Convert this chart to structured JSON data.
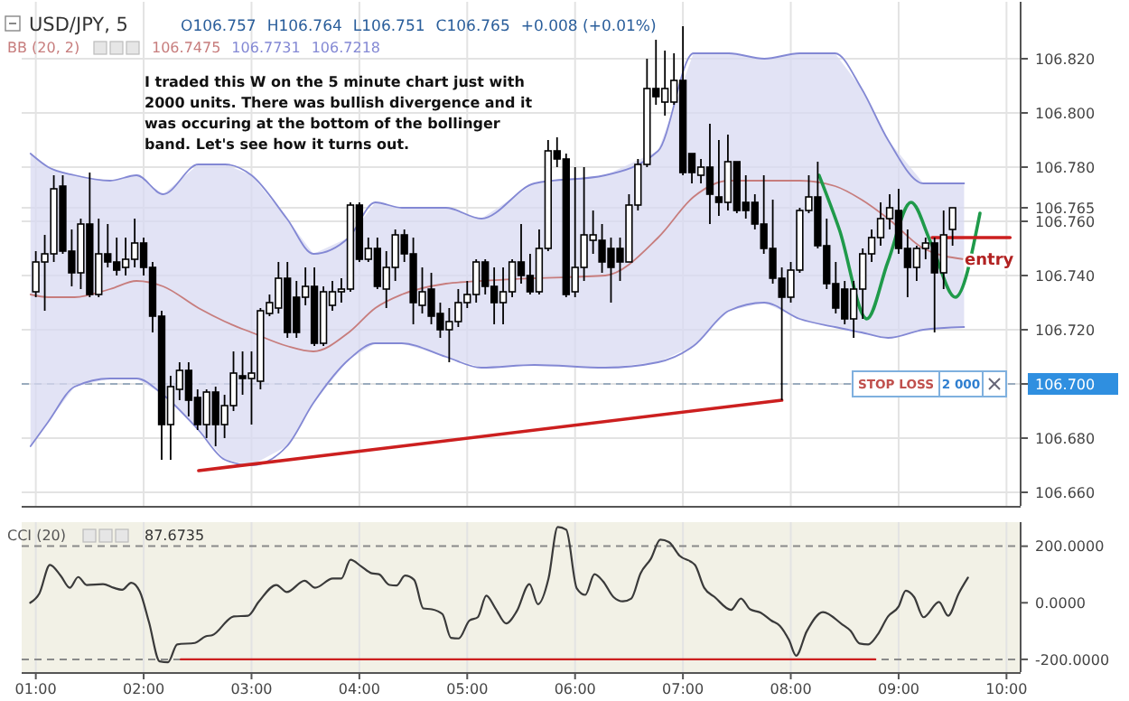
{
  "chart_data": [
    {
      "type": "candlestick",
      "title": "USD/JPY, 5",
      "x": [
        1.0,
        1.083,
        1.167,
        1.25,
        1.333,
        1.417,
        1.5,
        1.583,
        1.667,
        1.75,
        1.833,
        1.917,
        2.0,
        2.083,
        2.167,
        2.25,
        2.333,
        2.417,
        2.5,
        2.583,
        2.667,
        2.75,
        2.833,
        2.917,
        3.0,
        3.083,
        3.167,
        3.25,
        3.333,
        3.417,
        3.5,
        3.583,
        3.667,
        3.75,
        3.833,
        3.917,
        4.0,
        4.083,
        4.167,
        4.25,
        4.333,
        4.417,
        4.5,
        4.583,
        4.667,
        4.75,
        4.833,
        4.917,
        5.0,
        5.083,
        5.167,
        5.25,
        5.333,
        5.417,
        5.5,
        5.583,
        5.667,
        5.75,
        5.833,
        5.917,
        6.0,
        6.083,
        6.167,
        6.25,
        6.333,
        6.417,
        6.5,
        6.583,
        6.667,
        6.75,
        6.833,
        6.917,
        7.0,
        7.083,
        7.167,
        7.25,
        7.333,
        7.417,
        7.5,
        7.583,
        7.667,
        7.75,
        7.833,
        7.917,
        8.0,
        8.083,
        8.167,
        8.25,
        8.333,
        8.417,
        8.5,
        8.583,
        8.667,
        8.75,
        8.833,
        8.917,
        9.0,
        9.083,
        9.167,
        9.25,
        9.333,
        9.417,
        9.5
      ],
      "ohlc": [
        [
          106.734,
          106.749,
          106.732,
          106.745
        ],
        [
          106.745,
          106.755,
          106.727,
          106.748
        ],
        [
          106.748,
          106.777,
          106.745,
          106.772
        ],
        [
          106.773,
          106.777,
          106.748,
          106.749
        ],
        [
          106.749,
          106.757,
          106.736,
          106.741
        ],
        [
          106.741,
          106.761,
          106.735,
          106.759
        ],
        [
          106.759,
          106.778,
          106.732,
          106.733
        ],
        [
          106.733,
          106.761,
          106.732,
          106.748
        ],
        [
          106.748,
          106.759,
          106.743,
          106.745
        ],
        [
          106.745,
          106.754,
          106.74,
          106.742
        ],
        [
          106.743,
          106.754,
          106.74,
          106.746
        ],
        [
          106.746,
          106.761,
          106.743,
          106.752
        ],
        [
          106.752,
          106.754,
          106.74,
          106.743
        ],
        [
          106.743,
          106.745,
          106.719,
          106.725
        ],
        [
          106.725,
          106.727,
          106.672,
          106.685
        ],
        [
          106.685,
          106.703,
          106.672,
          106.699
        ],
        [
          106.698,
          106.708,
          106.694,
          106.705
        ],
        [
          106.705,
          106.708,
          106.688,
          106.694
        ],
        [
          106.695,
          106.698,
          106.683,
          106.685
        ],
        [
          106.685,
          106.698,
          106.68,
          106.697
        ],
        [
          106.697,
          106.699,
          106.677,
          106.685
        ],
        [
          106.685,
          106.696,
          106.68,
          106.692
        ],
        [
          106.692,
          106.712,
          106.69,
          106.704
        ],
        [
          106.703,
          106.712,
          106.696,
          106.702
        ],
        [
          106.702,
          106.712,
          106.685,
          106.704
        ],
        [
          106.701,
          106.728,
          106.698,
          106.727
        ],
        [
          106.726,
          106.733,
          106.725,
          106.73
        ],
        [
          106.728,
          106.745,
          106.726,
          106.739
        ],
        [
          106.739,
          106.745,
          106.717,
          106.719
        ],
        [
          106.732,
          106.738,
          106.717,
          106.719
        ],
        [
          106.732,
          106.743,
          106.729,
          106.736
        ],
        [
          106.736,
          106.743,
          106.714,
          106.715
        ],
        [
          106.715,
          106.736,
          106.714,
          106.734
        ],
        [
          106.729,
          106.738,
          106.727,
          106.734
        ],
        [
          106.734,
          106.739,
          106.73,
          106.735
        ],
        [
          106.735,
          106.767,
          106.734,
          106.766
        ],
        [
          106.766,
          106.767,
          106.745,
          106.746
        ],
        [
          106.746,
          106.754,
          106.745,
          106.75
        ],
        [
          106.75,
          106.754,
          106.735,
          106.736
        ],
        [
          106.735,
          106.749,
          106.728,
          106.743
        ],
        [
          106.743,
          106.757,
          106.738,
          106.755
        ],
        [
          106.755,
          106.757,
          106.745,
          106.748
        ],
        [
          106.748,
          106.754,
          106.722,
          106.73
        ],
        [
          106.729,
          106.743,
          106.726,
          106.734
        ],
        [
          106.735,
          106.741,
          106.722,
          106.725
        ],
        [
          106.726,
          106.73,
          106.717,
          106.72
        ],
        [
          106.72,
          106.728,
          106.708,
          106.723
        ],
        [
          106.723,
          106.735,
          106.721,
          106.73
        ],
        [
          106.73,
          106.738,
          106.728,
          106.733
        ],
        [
          106.733,
          106.746,
          106.73,
          106.745
        ],
        [
          106.745,
          106.746,
          106.733,
          106.736
        ],
        [
          106.736,
          106.743,
          106.722,
          106.73
        ],
        [
          106.73,
          106.743,
          106.722,
          106.734
        ],
        [
          106.734,
          106.746,
          106.732,
          106.745
        ],
        [
          106.745,
          106.759,
          106.737,
          106.74
        ],
        [
          106.74,
          106.748,
          106.733,
          106.734
        ],
        [
          106.734,
          106.757,
          106.733,
          106.75
        ],
        [
          106.75,
          106.79,
          106.749,
          106.786
        ],
        [
          106.786,
          106.791,
          106.78,
          106.783
        ],
        [
          106.783,
          106.785,
          106.732,
          106.733
        ],
        [
          106.734,
          106.78,
          106.732,
          106.743
        ],
        [
          106.743,
          106.78,
          106.738,
          106.755
        ],
        [
          106.753,
          106.764,
          106.748,
          106.755
        ],
        [
          106.753,
          106.759,
          106.741,
          106.745
        ],
        [
          106.75,
          106.754,
          106.73,
          106.743
        ],
        [
          106.75,
          106.754,
          106.738,
          106.745
        ],
        [
          106.745,
          106.77,
          106.745,
          106.766
        ],
        [
          106.766,
          106.783,
          106.764,
          106.781
        ],
        [
          106.781,
          106.82,
          106.78,
          106.809
        ],
        [
          106.809,
          106.827,
          106.803,
          106.806
        ],
        [
          106.804,
          106.823,
          106.799,
          106.809
        ],
        [
          106.804,
          106.822,
          106.803,
          106.812
        ],
        [
          106.812,
          106.832,
          106.777,
          106.778
        ],
        [
          106.785,
          106.785,
          106.774,
          106.778
        ],
        [
          106.777,
          106.783,
          106.774,
          106.78
        ],
        [
          106.78,
          106.796,
          106.759,
          106.77
        ],
        [
          106.769,
          106.79,
          106.762,
          106.767
        ],
        [
          106.767,
          106.792,
          106.764,
          106.782
        ],
        [
          106.782,
          106.782,
          106.763,
          106.764
        ],
        [
          106.767,
          106.777,
          106.761,
          106.764
        ],
        [
          106.767,
          106.77,
          106.757,
          106.759
        ],
        [
          106.759,
          106.777,
          106.748,
          106.75
        ],
        [
          106.75,
          106.768,
          106.737,
          106.739
        ],
        [
          106.739,
          106.743,
          106.694,
          106.732
        ],
        [
          106.732,
          106.745,
          106.73,
          106.742
        ],
        [
          106.742,
          106.765,
          106.741,
          106.764
        ],
        [
          106.764,
          106.777,
          106.763,
          106.769
        ],
        [
          106.769,
          106.782,
          106.75,
          106.751
        ],
        [
          106.751,
          106.761,
          106.735,
          106.737
        ],
        [
          106.737,
          106.745,
          106.726,
          106.728
        ],
        [
          106.735,
          106.738,
          106.722,
          106.724
        ],
        [
          106.724,
          106.738,
          106.717,
          106.735
        ],
        [
          106.735,
          106.75,
          106.724,
          106.748
        ],
        [
          106.748,
          106.757,
          106.745,
          106.754
        ],
        [
          106.754,
          106.767,
          106.751,
          106.761
        ],
        [
          106.761,
          106.77,
          106.757,
          106.765
        ],
        [
          106.764,
          106.772,
          106.748,
          106.75
        ],
        [
          106.75,
          106.757,
          106.732,
          106.743
        ],
        [
          106.743,
          106.751,
          106.738,
          106.75
        ],
        [
          106.75,
          106.754,
          106.746,
          106.752
        ],
        [
          106.752,
          106.754,
          106.719,
          106.741
        ],
        [
          106.741,
          106.764,
          106.735,
          106.755
        ],
        [
          106.757,
          106.765,
          106.751,
          106.765
        ]
      ],
      "series": [
        {
          "type": "line",
          "name": "BB (20, 2)",
          "color": "#c77d7d",
          "x": [
            0.951,
            1.115,
            1.361,
            1.689,
            1.934,
            2.18,
            2.508,
            2.754,
            3.0,
            3.328,
            3.574,
            3.902,
            4.148,
            4.393,
            4.803,
            5.131,
            5.623,
            6.279,
            6.77,
            7.098,
            7.426,
            7.754,
            8.082,
            8.41,
            8.656,
            8.902,
            9.23,
            9.607
          ],
          "values": [
            106.733,
            106.732,
            106.732,
            106.735,
            106.738,
            106.736,
            106.728,
            106.723,
            106.719,
            106.714,
            106.712,
            106.719,
            106.728,
            106.733,
            106.737,
            106.738,
            106.739,
            106.74,
            106.754,
            106.769,
            106.775,
            106.775,
            106.775,
            106.773,
            106.768,
            106.761,
            106.75,
            106.746
          ],
          "upper": [
            106.785,
            106.78,
            106.777,
            106.775,
            106.777,
            106.77,
            106.781,
            106.781,
            106.777,
            106.761,
            106.748,
            106.754,
            106.767,
            106.765,
            106.765,
            106.761,
            106.774,
            106.777,
            106.786,
            106.822,
            106.822,
            106.82,
            106.822,
            106.822,
            106.809,
            106.79,
            106.774,
            106.774
          ],
          "lower": [
            106.677,
            106.686,
            106.699,
            106.702,
            106.702,
            106.696,
            106.683,
            106.672,
            106.67,
            106.677,
            106.693,
            106.709,
            106.715,
            106.715,
            106.71,
            106.706,
            106.707,
            106.706,
            106.708,
            106.714,
            106.727,
            106.73,
            106.724,
            106.721,
            106.719,
            106.717,
            106.72,
            106.721
          ]
        },
        {
          "type": "line",
          "color": "#8388d4",
          "x": [
            0.951,
            1.115,
            1.361,
            1.689,
            1.934,
            2.18,
            2.508,
            2.754,
            3.0,
            3.328,
            3.574,
            3.902,
            4.148,
            4.393,
            4.803,
            5.131,
            5.623,
            6.279,
            6.77,
            7.098,
            7.426,
            7.754,
            8.082,
            8.41,
            8.656,
            8.902,
            9.23,
            9.607
          ],
          "values": [
            106.785,
            106.78,
            106.777,
            106.775,
            106.777,
            106.77,
            106.781,
            106.781,
            106.777,
            106.761,
            106.748,
            106.754,
            106.767,
            106.765,
            106.765,
            106.761,
            106.774,
            106.777,
            106.786,
            106.822,
            106.822,
            106.82,
            106.822,
            106.822,
            106.809,
            106.79,
            106.774,
            106.774
          ]
        },
        {
          "type": "line",
          "color": "#8388d4",
          "x": [
            0.951,
            1.115,
            1.361,
            1.689,
            1.934,
            2.18,
            2.508,
            2.754,
            3.0,
            3.328,
            3.574,
            3.902,
            4.148,
            4.393,
            4.803,
            5.131,
            5.623,
            6.279,
            6.77,
            7.098,
            7.426,
            7.754,
            8.082,
            8.41,
            8.656,
            8.902,
            9.23,
            9.607
          ],
          "values": [
            106.677,
            106.686,
            106.699,
            106.702,
            106.702,
            106.696,
            106.683,
            106.672,
            106.67,
            106.677,
            106.693,
            106.709,
            106.715,
            106.715,
            106.71,
            106.706,
            106.707,
            106.706,
            106.708,
            106.714,
            106.727,
            106.73,
            106.724,
            106.721,
            106.719,
            106.717,
            106.72,
            106.721
          ]
        },
        {
          "type": "line",
          "color": "#cc1f1f",
          "x": [
            2.51,
            7.917
          ],
          "values": [
            106.668,
            106.694
          ]
        },
        {
          "type": "line",
          "color": "#1f9a4a",
          "x": [
            8.262,
            8.45,
            8.705,
            8.9,
            9.115,
            9.3,
            9.525,
            9.754
          ],
          "values": [
            106.777,
            106.757,
            106.724,
            106.745,
            106.767,
            106.752,
            106.732,
            106.763
          ]
        },
        {
          "type": "line",
          "color": "#cc1f1f",
          "x": [
            9.311,
            10.033
          ],
          "values": [
            106.754,
            106.754
          ]
        }
      ],
      "xlim": [
        0.869,
        10.131
      ],
      "ylim": [
        106.655,
        106.841
      ],
      "xticks": [
        {
          "value": 1,
          "label": null
        },
        {
          "value": 2,
          "label": null
        },
        {
          "value": 3,
          "label": null
        },
        {
          "value": 4,
          "label": null
        },
        {
          "value": 5,
          "label": null
        },
        {
          "value": 6,
          "label": null
        },
        {
          "value": 7,
          "label": null
        },
        {
          "value": 8,
          "label": null
        },
        {
          "value": 9,
          "label": null
        },
        {
          "value": 10,
          "label": null
        }
      ],
      "yticks": [
        {
          "value": 106.66,
          "label": "106.660"
        },
        {
          "value": 106.68,
          "label": "106.680"
        },
        {
          "value": 106.7,
          "label": "106.700"
        },
        {
          "value": 106.72,
          "label": "106.720"
        },
        {
          "value": 106.74,
          "label": "106.740"
        },
        {
          "value": 106.76,
          "label": "106.760"
        },
        {
          "value": 106.765,
          "label": "106.765"
        },
        {
          "value": 106.78,
          "label": "106.780"
        },
        {
          "value": 106.8,
          "label": "106.800"
        },
        {
          "value": 106.82,
          "label": "106.820"
        }
      ],
      "tick_labels": "y",
      "grid": true,
      "ref_lines": [
        {
          "axis": "y",
          "value": 106.7,
          "label": "STOP LOSS",
          "line_style": "dashed",
          "color": "#9aabbd"
        }
      ],
      "annotations": [
        "O106.757",
        "H106.764",
        "L106.751",
        "C106.765",
        "+0.008 (+0.01%)",
        "106.7475",
        "106.7731",
        "106.7218",
        "I traded this W on the 5 minute chart just with 2000 units. There was bullish divergence and it was occuring at the bottom of the bollinger band. Let's see how it turns out.",
        "2 000",
        {
          "text": "entry",
          "x": 10.033,
          "y": 106.754
        }
      ]
    },
    {
      "type": "line",
      "title": "CCI (20)",
      "series": [
        {
          "color": "#3a3a3a",
          "x": [
            0.948,
            1.033,
            1.131,
            1.23,
            1.315,
            1.393,
            1.472,
            1.623,
            1.721,
            1.8,
            1.885,
            1.964,
            2.049,
            2.148,
            2.226,
            2.311,
            2.475,
            2.574,
            2.639,
            2.836,
            2.967,
            3.066,
            3.23,
            3.328,
            3.492,
            3.59,
            3.754,
            3.833,
            3.918,
            4.016,
            4.115,
            4.18,
            4.279,
            4.344,
            4.423,
            4.508,
            4.593,
            4.672,
            4.77,
            4.849,
            4.921,
            5.02,
            5.098,
            5.177,
            5.262,
            5.361,
            5.459,
            5.577,
            5.656,
            5.754,
            5.839,
            5.918,
            6.016,
            6.095,
            6.18,
            6.259,
            6.357,
            6.443,
            6.521,
            6.607,
            6.705,
            6.79,
            6.869,
            6.967,
            7.111,
            7.197,
            7.295,
            7.446,
            7.538,
            7.623,
            7.721,
            7.82,
            7.898,
            7.984,
            8.049,
            8.148,
            8.298,
            8.475,
            8.554,
            8.639,
            8.718,
            8.803,
            8.902,
            9.0,
            9.066,
            9.144,
            9.23,
            9.374,
            9.459,
            9.557,
            9.643
          ],
          "values": [
            0,
            33,
            134,
            96,
            53,
            91,
            63,
            66,
            53,
            46,
            71,
            40,
            -68,
            -207,
            -210,
            -147,
            -142,
            -119,
            -114,
            -48,
            -46,
            3,
            63,
            38,
            78,
            53,
            86,
            86,
            152,
            129,
            104,
            101,
            63,
            61,
            96,
            81,
            -20,
            -23,
            -40,
            -124,
            -126,
            -63,
            -51,
            25,
            -20,
            -73,
            -30,
            66,
            -5,
            86,
            268,
            258,
            51,
            28,
            101,
            76,
            20,
            5,
            15,
            104,
            157,
            223,
            215,
            167,
            134,
            53,
            20,
            -25,
            15,
            -23,
            -35,
            -63,
            -81,
            -132,
            -187,
            -101,
            -33,
            -76,
            -99,
            -144,
            -147,
            -114,
            -48,
            -13,
            43,
            20,
            -51,
            3,
            -46,
            33,
            89
          ]
        },
        {
          "color": "#cc1f1f",
          "x": [
            2.344,
            8.784
          ],
          "values": [
            -200,
            -200
          ]
        }
      ],
      "xlim": [
        0.869,
        10.131
      ],
      "ylim": [
        -245,
        285
      ],
      "xticks": [
        {
          "value": 1,
          "label": "01:00"
        },
        {
          "value": 2,
          "label": "02:00"
        },
        {
          "value": 3,
          "label": "03:00"
        },
        {
          "value": 4,
          "label": "04:00"
        },
        {
          "value": 5,
          "label": "05:00"
        },
        {
          "value": 6,
          "label": "06:00"
        },
        {
          "value": 7,
          "label": "07:00"
        },
        {
          "value": 8,
          "label": "08:00"
        },
        {
          "value": 9,
          "label": "09:00"
        },
        {
          "value": 10,
          "label": "10:00"
        }
      ],
      "yticks": [
        {
          "value": 200,
          "label": "200.0000"
        },
        {
          "value": 0,
          "label": "0.0000"
        },
        {
          "value": -200,
          "label": "-200.0000"
        }
      ],
      "grid": "x",
      "ref_lines": [
        {
          "axis": "y",
          "value": 200,
          "line_style": "dashed",
          "color": "#8a8a8a"
        },
        {
          "axis": "y",
          "value": -200,
          "line_style": "dashed",
          "color": "#8a8a8a"
        }
      ],
      "annotations": [
        "87.6735"
      ]
    }
  ]
}
